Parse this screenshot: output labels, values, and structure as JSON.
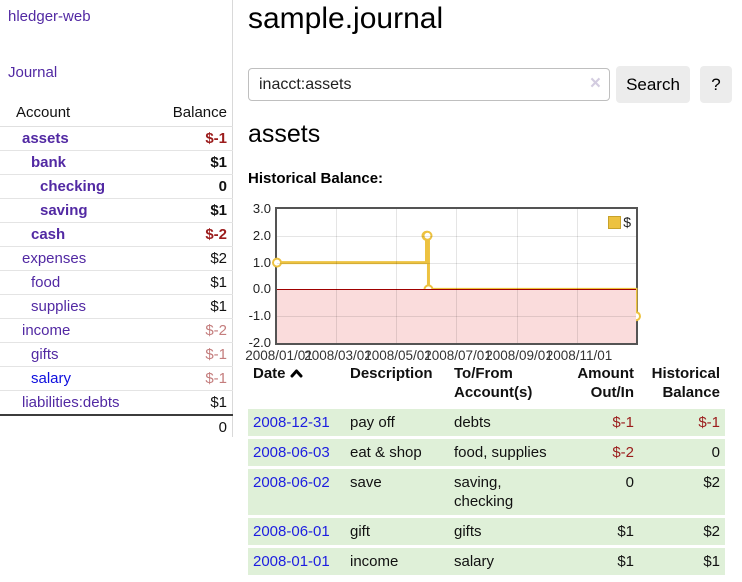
{
  "sidebar": {
    "brand": "hledger-web",
    "nav": {
      "journal": "Journal"
    },
    "accounts_table": {
      "headers": {
        "account": "Account",
        "balance": "Balance"
      },
      "rows": [
        {
          "name": "assets",
          "level": 1,
          "bold": true,
          "value": "$-1",
          "value_class": "neg-strong"
        },
        {
          "name": "bank",
          "level": 2,
          "bold": true,
          "value": "$1",
          "value_class": "pos"
        },
        {
          "name": "checking",
          "level": 3,
          "bold": true,
          "value": "0",
          "value_class": "pos"
        },
        {
          "name": "saving",
          "level": 3,
          "bold": true,
          "value": "$1",
          "value_class": "pos"
        },
        {
          "name": "cash",
          "level": 2,
          "bold": true,
          "value": "$-2",
          "value_class": "neg-strong"
        },
        {
          "name": "expenses",
          "level": 1,
          "bold": false,
          "value": "$2",
          "value_class": "pos"
        },
        {
          "name": "food",
          "level": 2,
          "bold": false,
          "value": "$1",
          "value_class": "pos"
        },
        {
          "name": "supplies",
          "level": 2,
          "bold": false,
          "value": "$1",
          "value_class": "pos"
        },
        {
          "name": "income",
          "level": 1,
          "bold": false,
          "value": "$-2",
          "value_class": "neg-faded"
        },
        {
          "name": "gifts",
          "level": 2,
          "bold": false,
          "value": "$-1",
          "value_class": "neg-faded"
        },
        {
          "name": "salary",
          "level": 2,
          "bold": false,
          "value": "$-1",
          "value_class": "neg-faded",
          "blue": true
        },
        {
          "name": "liabilities:debts",
          "level": 1,
          "bold": false,
          "value": "$1",
          "value_class": "pos"
        }
      ],
      "total": "0"
    }
  },
  "header": {
    "title": "sample.journal"
  },
  "search": {
    "value": "inacct:assets",
    "clear_icon": "×",
    "button": "Search",
    "help": "?"
  },
  "content": {
    "account_heading": "assets",
    "chart_label": "Historical Balance:"
  },
  "chart_data": {
    "type": "line",
    "title": "Historical Balance:",
    "series": [
      {
        "name": "$",
        "color": "#edc240",
        "step": true,
        "points": [
          [
            "2008-01-01",
            1
          ],
          [
            "2008-06-01",
            2
          ],
          [
            "2008-06-02",
            2
          ],
          [
            "2008-06-03",
            0
          ],
          [
            "2008-12-31",
            -1
          ]
        ]
      }
    ],
    "ylim": [
      -2,
      3
    ],
    "yticks": [
      {
        "v": 3,
        "label": "3.0"
      },
      {
        "v": 2,
        "label": "2.0"
      },
      {
        "v": 1,
        "label": "1.0"
      },
      {
        "v": 0,
        "label": "0.0"
      },
      {
        "v": -1,
        "label": "-1.0"
      },
      {
        "v": -2,
        "label": "-2.0"
      }
    ],
    "xticks": [
      {
        "d": "2008-01-01",
        "label": "2008/01/01"
      },
      {
        "d": "2008-03-01",
        "label": "2008/03/01"
      },
      {
        "d": "2008-05-01",
        "label": "2008/05/01"
      },
      {
        "d": "2008-07-01",
        "label": "2008/07/01"
      },
      {
        "d": "2008-09-01",
        "label": "2008/09/01"
      },
      {
        "d": "2008-11-01",
        "label": "2008/11/01"
      }
    ],
    "x_range": [
      "2008-01-01",
      "2008-12-31"
    ],
    "grid": true,
    "negative_fill": "#fadcdc",
    "zero_line_color": "#a00000",
    "legend": {
      "label": "$",
      "position": "top-right"
    }
  },
  "register": {
    "headers": {
      "date": "Date",
      "description": "Description",
      "accounts": "To/From Account(s)",
      "amount": "Amount Out/In",
      "balance": "Historical Balance"
    },
    "rows": [
      {
        "date": "2008-12-31",
        "description": "pay off",
        "accounts": "debts",
        "amount": "$-1",
        "amount_neg": true,
        "balance": "$-1",
        "balance_neg": true
      },
      {
        "date": "2008-06-03",
        "description": "eat & shop",
        "accounts": "food, supplies",
        "amount": "$-2",
        "amount_neg": true,
        "balance": "0",
        "balance_neg": false
      },
      {
        "date": "2008-06-02",
        "description": "save",
        "accounts": "saving, checking",
        "amount": "0",
        "amount_neg": false,
        "balance": "$2",
        "balance_neg": false
      },
      {
        "date": "2008-06-01",
        "description": "gift",
        "accounts": "gifts",
        "amount": "$1",
        "amount_neg": false,
        "balance": "$2",
        "balance_neg": false
      },
      {
        "date": "2008-01-01",
        "description": "income",
        "accounts": "salary",
        "amount": "$1",
        "amount_neg": false,
        "balance": "$1",
        "balance_neg": false
      }
    ]
  },
  "colors": {
    "link_purple": "#5229a3",
    "link_blue": "#0f0fde",
    "date_link_blue": "#1d1de0",
    "negative_strong": "#9b1c1c",
    "negative_faded": "#c47d7d",
    "row_green": "#dff0d8",
    "chart_gold": "#edc240",
    "chart_negative_fill": "#fadcdc",
    "chart_zero_line": "#a00000",
    "button_gray": "#ececec"
  }
}
